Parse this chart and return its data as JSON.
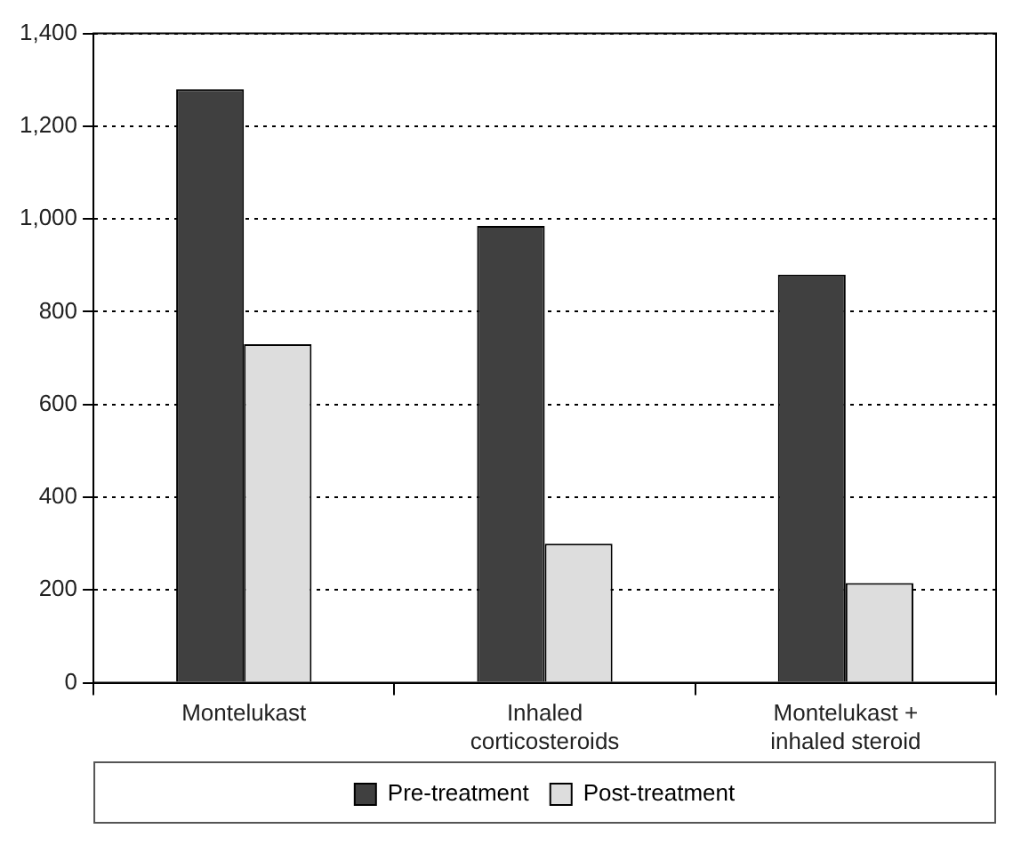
{
  "chart_data": {
    "type": "bar",
    "categories": [
      "Montelukast",
      "Inhaled corticosteroids",
      "Montelukast + inhaled steroid"
    ],
    "series": [
      {
        "name": "Pre-treatment",
        "color": "#404040",
        "values": [
          1280,
          985,
          880
        ]
      },
      {
        "name": "Post-treatment",
        "color": "#dddddd",
        "values": [
          730,
          300,
          215
        ]
      }
    ],
    "ylim": [
      0,
      1400
    ],
    "yticks": [
      0,
      200,
      400,
      600,
      800,
      {
        "value": 1000,
        "label": "1,000"
      },
      {
        "value": 1200,
        "label": "1,200"
      },
      {
        "value": 1400,
        "label": "1,400"
      }
    ],
    "grid": "y",
    "legend": "bottom"
  }
}
